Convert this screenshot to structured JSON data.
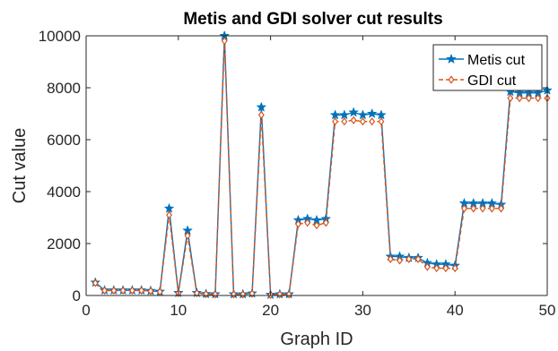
{
  "chart_data": {
    "type": "line",
    "title": "Metis and GDI solver cut results",
    "xlabel": "Graph ID",
    "ylabel": "Cut value",
    "xlim": [
      0,
      50
    ],
    "ylim": [
      0,
      10000
    ],
    "xticks": [
      0,
      10,
      20,
      30,
      40,
      50
    ],
    "yticks": [
      0,
      2000,
      4000,
      6000,
      8000,
      10000
    ],
    "xtick_labels": [
      "0",
      "10",
      "20",
      "30",
      "40",
      "50"
    ],
    "ytick_labels": [
      "0",
      "2000",
      "4000",
      "6000",
      "8000",
      "10000"
    ],
    "grid": false,
    "legend_position": "top-right",
    "x": [
      1,
      2,
      3,
      4,
      5,
      6,
      7,
      8,
      9,
      10,
      11,
      12,
      13,
      14,
      15,
      16,
      17,
      18,
      19,
      20,
      21,
      22,
      23,
      24,
      25,
      26,
      27,
      28,
      29,
      30,
      31,
      32,
      33,
      34,
      35,
      36,
      37,
      38,
      39,
      40,
      41,
      42,
      43,
      44,
      45,
      46,
      47,
      48,
      49,
      50
    ],
    "series": [
      {
        "name": "Metis cut",
        "color": "#0072BD",
        "marker": "star",
        "line_style": "solid",
        "values": [
          500,
          200,
          200,
          200,
          200,
          200,
          180,
          150,
          3350,
          100,
          2500,
          100,
          60,
          50,
          10000,
          50,
          50,
          80,
          7250,
          30,
          50,
          50,
          2900,
          2950,
          2900,
          2950,
          6950,
          6950,
          7050,
          6950,
          7000,
          6950,
          1500,
          1500,
          1450,
          1450,
          1250,
          1200,
          1200,
          1150,
          3550,
          3550,
          3550,
          3550,
          3500,
          7850,
          7800,
          7800,
          7800,
          7900
        ]
      },
      {
        "name": "GDI cut",
        "color": "#D95319",
        "marker": "diamond",
        "line_style": "dashed",
        "values": [
          480,
          190,
          190,
          190,
          190,
          190,
          170,
          140,
          3100,
          90,
          2300,
          90,
          50,
          40,
          9800,
          40,
          40,
          70,
          6950,
          20,
          40,
          40,
          2750,
          2800,
          2700,
          2800,
          6700,
          6700,
          6750,
          6700,
          6700,
          6700,
          1400,
          1350,
          1400,
          1400,
          1100,
          1050,
          1050,
          1050,
          3350,
          3350,
          3350,
          3350,
          3350,
          7600,
          7600,
          7600,
          7600,
          7600
        ]
      }
    ]
  }
}
